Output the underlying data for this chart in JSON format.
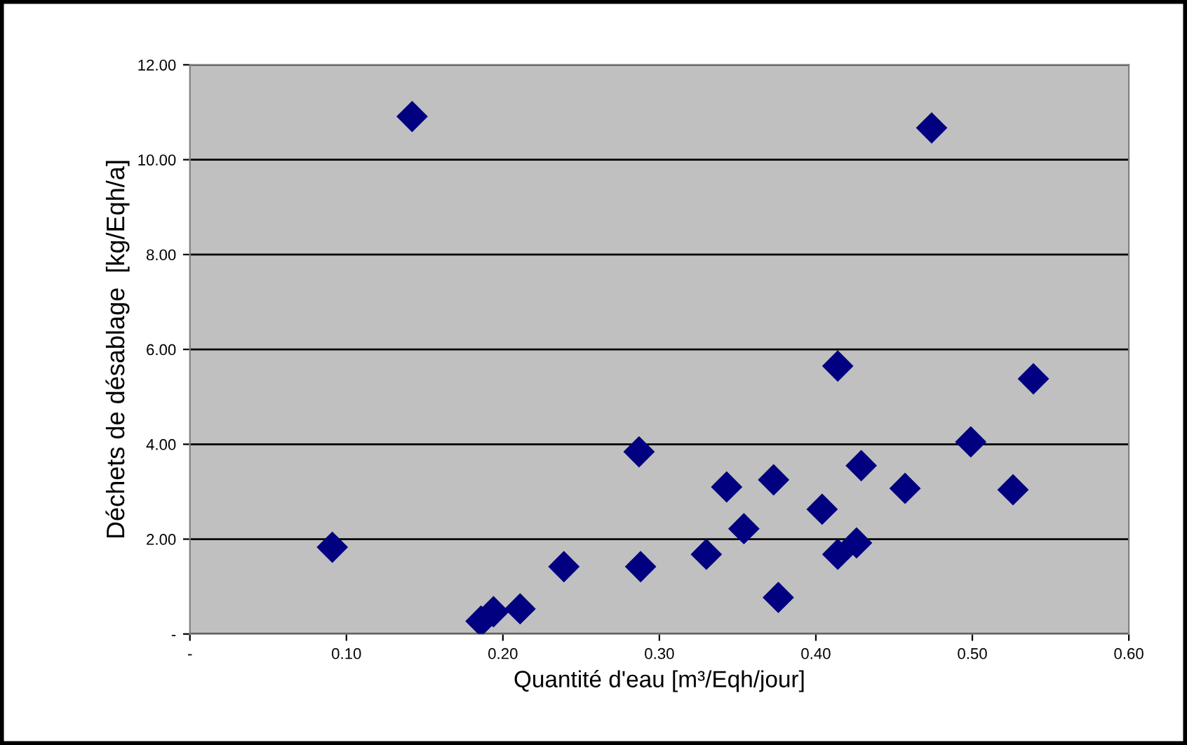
{
  "chart_data": {
    "type": "scatter",
    "xlabel": "Quantité d'eau [m³/Eqh/jour]",
    "ylabel": "Déchets de désablage  [kg/Eqh/a]",
    "x": [
      0.091,
      0.142,
      0.186,
      0.194,
      0.211,
      0.239,
      0.287,
      0.288,
      0.33,
      0.343,
      0.354,
      0.373,
      0.376,
      0.404,
      0.414,
      0.414,
      0.426,
      0.429,
      0.457,
      0.474,
      0.499,
      0.526,
      0.539
    ],
    "values": [
      1.83,
      10.91,
      0.27,
      0.47,
      0.53,
      1.42,
      3.84,
      1.42,
      1.68,
      3.1,
      2.22,
      3.25,
      0.77,
      2.63,
      5.65,
      1.68,
      1.92,
      3.55,
      3.07,
      10.67,
      4.05,
      3.04,
      5.38
    ],
    "color": "#000080",
    "marker": "diamond",
    "grid": "y",
    "legend": false,
    "xlim": [
      0,
      0.6
    ],
    "xticks": [
      {
        "value": 0,
        "label": "-"
      },
      {
        "value": 0.1,
        "label": "0.10"
      },
      {
        "value": 0.2,
        "label": "0.20"
      },
      {
        "value": 0.3,
        "label": "0.30"
      },
      {
        "value": 0.4,
        "label": "0.40"
      },
      {
        "value": 0.5,
        "label": "0.50"
      },
      {
        "value": 0.6,
        "label": "0.60"
      }
    ],
    "ylim": [
      0,
      12
    ],
    "yticks": [
      {
        "value": 0,
        "label": "-"
      },
      {
        "value": 2,
        "label": "2.00"
      },
      {
        "value": 4,
        "label": "4.00"
      },
      {
        "value": 6,
        "label": "6.00"
      },
      {
        "value": 8,
        "label": "8.00"
      },
      {
        "value": 10,
        "label": "10.00"
      },
      {
        "value": 12,
        "label": "12.00"
      }
    ]
  }
}
